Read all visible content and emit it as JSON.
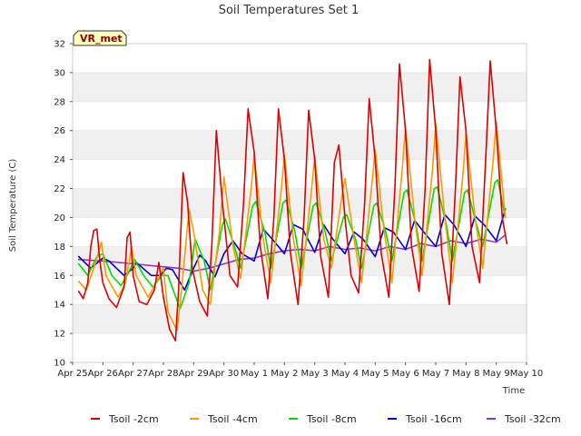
{
  "chart_data": {
    "type": "line",
    "title": "Soil Temperatures Set 1",
    "xlabel": "Time",
    "ylabel": "Soil Temperature (C)",
    "site_label": "VR_met",
    "xlim": [
      0,
      15
    ],
    "ylim": [
      10,
      32
    ],
    "yticks": [
      10,
      12,
      14,
      16,
      18,
      20,
      22,
      24,
      26,
      28,
      30,
      32
    ],
    "xtick_positions": [
      0,
      1,
      2,
      3,
      4,
      5,
      6,
      7,
      8,
      9,
      10,
      11,
      12,
      13,
      14,
      15
    ],
    "xtick_labels": [
      "Apr 25",
      "Apr 26",
      "Apr 27",
      "Apr 28",
      "Apr 29",
      "Apr 30",
      "May 1",
      "May 2",
      "May 3",
      "May 4",
      "May 5",
      "May 6",
      "May 7",
      "May 8",
      "May 9",
      "May 10"
    ],
    "grid": "horizontal bands",
    "legend_position": "bottom",
    "series": [
      {
        "name": "Tsoil -2cm",
        "color": "#dd0000",
        "x": [
          0.2,
          0.35,
          0.5,
          0.6,
          0.7,
          0.8,
          0.9,
          1.0,
          1.2,
          1.45,
          1.7,
          1.8,
          1.9,
          2.0,
          2.2,
          2.45,
          2.7,
          2.85,
          3.0,
          3.2,
          3.4,
          3.5,
          3.65,
          3.8,
          3.95,
          4.2,
          4.45,
          4.6,
          4.75,
          4.95,
          5.2,
          5.45,
          5.65,
          5.8,
          6.0,
          6.2,
          6.45,
          6.65,
          6.8,
          7.0,
          7.2,
          7.45,
          7.65,
          7.8,
          8.0,
          8.2,
          8.45,
          8.65,
          8.8,
          9.0,
          9.2,
          9.45,
          9.65,
          9.8,
          10.0,
          10.2,
          10.45,
          10.65,
          10.8,
          11.0,
          11.2,
          11.45,
          11.65,
          11.8,
          12.0,
          12.2,
          12.45,
          12.65,
          12.8,
          13.0,
          13.2,
          13.45,
          13.65,
          13.8,
          14.0,
          14.2,
          14.35
        ],
        "y": [
          14.9,
          14.4,
          15.5,
          18.0,
          19.1,
          19.2,
          17.0,
          15.5,
          14.4,
          13.8,
          15.2,
          18.6,
          19.0,
          16.0,
          14.2,
          14.0,
          15.0,
          16.9,
          14.5,
          12.3,
          11.5,
          15.0,
          23.1,
          21.0,
          16.5,
          14.2,
          13.2,
          18.0,
          26.0,
          21.0,
          16.0,
          15.2,
          21.0,
          27.5,
          24.5,
          18.0,
          14.4,
          20.0,
          27.5,
          24.0,
          17.5,
          14.0,
          20.0,
          27.4,
          24.0,
          17.3,
          14.5,
          23.8,
          25.0,
          20.0,
          16.0,
          14.8,
          21.0,
          28.2,
          24.0,
          17.5,
          14.5,
          22.0,
          30.6,
          26.0,
          18.0,
          14.9,
          22.0,
          30.9,
          26.0,
          17.5,
          14.0,
          22.0,
          29.7,
          26.0,
          18.0,
          15.5,
          24.0,
          30.8,
          26.0,
          20.0,
          18.2
        ]
      },
      {
        "name": "Tsoil -4cm",
        "color": "#ff9900",
        "x": [
          0.2,
          0.45,
          0.7,
          0.95,
          1.1,
          1.5,
          1.75,
          1.95,
          2.1,
          2.5,
          2.75,
          3.0,
          3.15,
          3.45,
          3.6,
          3.85,
          4.0,
          4.3,
          4.55,
          4.85,
          5.0,
          5.3,
          5.55,
          5.9,
          6.0,
          6.3,
          6.55,
          6.9,
          7.0,
          7.3,
          7.55,
          7.9,
          8.0,
          8.3,
          8.55,
          8.9,
          9.0,
          9.3,
          9.55,
          9.9,
          10.0,
          10.3,
          10.55,
          10.9,
          11.0,
          11.3,
          11.55,
          11.9,
          12.0,
          12.3,
          12.55,
          12.9,
          13.0,
          13.3,
          13.55,
          13.9,
          14.0,
          14.3
        ],
        "y": [
          15.6,
          15.0,
          16.5,
          18.3,
          16.0,
          14.5,
          15.5,
          18.0,
          16.0,
          14.5,
          15.5,
          16.5,
          13.5,
          12.2,
          15.0,
          20.6,
          19.0,
          15.0,
          14.0,
          19.0,
          22.8,
          18.0,
          15.8,
          22.0,
          24.3,
          18.5,
          15.5,
          22.0,
          24.3,
          18.5,
          15.3,
          22.0,
          24.2,
          18.5,
          16.5,
          21.5,
          22.7,
          18.5,
          15.5,
          22.5,
          24.7,
          19.0,
          15.5,
          23.5,
          26.2,
          20.0,
          16.0,
          23.5,
          26.5,
          20.0,
          15.5,
          23.0,
          25.8,
          20.0,
          16.5,
          24.0,
          26.6,
          20.0
        ]
      },
      {
        "name": "Tsoil -8cm",
        "color": "#00dd00",
        "x": [
          0.2,
          0.5,
          0.8,
          1.0,
          1.3,
          1.6,
          1.85,
          2.05,
          2.35,
          2.65,
          2.95,
          3.15,
          3.55,
          3.85,
          4.05,
          4.35,
          4.55,
          4.95,
          5.05,
          5.35,
          5.55,
          5.95,
          6.05,
          6.35,
          6.55,
          6.95,
          7.05,
          7.35,
          7.55,
          7.95,
          8.05,
          8.35,
          8.55,
          8.95,
          9.05,
          9.35,
          9.55,
          9.95,
          10.05,
          10.35,
          10.55,
          10.95,
          11.05,
          11.35,
          11.55,
          11.95,
          12.05,
          12.35,
          12.55,
          12.95,
          13.05,
          13.35,
          13.55,
          13.95,
          14.05,
          14.3
        ],
        "y": [
          16.8,
          16.0,
          17.3,
          17.5,
          16.0,
          15.3,
          16.2,
          17.1,
          16.0,
          15.2,
          16.0,
          16.0,
          13.7,
          15.5,
          18.5,
          17.0,
          15.0,
          19.5,
          19.9,
          18.0,
          16.5,
          20.8,
          21.1,
          19.0,
          16.5,
          21.0,
          21.2,
          19.0,
          16.5,
          20.8,
          21.0,
          19.0,
          17.0,
          20.0,
          20.2,
          18.5,
          16.5,
          20.8,
          21.0,
          19.0,
          17.0,
          21.7,
          21.9,
          19.5,
          17.0,
          22.0,
          22.1,
          19.5,
          17.0,
          21.7,
          21.9,
          19.5,
          18.0,
          22.4,
          22.6,
          20.0
        ]
      },
      {
        "name": "Tsoil -16cm",
        "color": "#0000cc",
        "x": [
          0.2,
          0.6,
          1.0,
          1.2,
          1.7,
          2.0,
          2.1,
          2.6,
          2.9,
          3.1,
          3.3,
          3.7,
          4.0,
          4.2,
          4.4,
          4.7,
          5.0,
          5.3,
          5.6,
          6.0,
          6.3,
          6.6,
          7.0,
          7.3,
          7.6,
          8.0,
          8.3,
          8.6,
          9.0,
          9.3,
          9.6,
          10.0,
          10.3,
          10.6,
          11.0,
          11.3,
          11.6,
          12.0,
          12.3,
          12.6,
          13.0,
          13.3,
          13.6,
          14.0,
          14.3
        ],
        "y": [
          17.3,
          16.5,
          17.2,
          17.0,
          16.0,
          16.5,
          16.9,
          16.0,
          16.0,
          16.5,
          16.4,
          15.0,
          16.5,
          17.4,
          17.0,
          15.9,
          17.5,
          18.4,
          17.5,
          17.0,
          19.2,
          18.5,
          17.5,
          19.5,
          19.2,
          17.6,
          19.5,
          18.5,
          17.5,
          19.0,
          18.5,
          17.3,
          19.3,
          19.0,
          17.8,
          19.8,
          19.0,
          18.0,
          20.2,
          19.5,
          18.0,
          20.1,
          19.5,
          18.4,
          20.6
        ]
      },
      {
        "name": "Tsoil -32cm",
        "color": "#9933cc",
        "x": [
          0.2,
          1.0,
          2.0,
          3.0,
          3.5,
          4.0,
          4.5,
          5.0,
          5.5,
          6.0,
          6.5,
          7.0,
          7.5,
          8.0,
          8.5,
          9.0,
          9.5,
          10.0,
          10.5,
          11.0,
          11.5,
          12.0,
          12.5,
          13.0,
          13.5,
          14.0,
          14.3
        ],
        "y": [
          17.1,
          17.0,
          16.8,
          16.6,
          16.5,
          16.3,
          16.5,
          16.8,
          17.1,
          17.2,
          17.5,
          17.7,
          17.8,
          17.7,
          18.0,
          17.8,
          17.9,
          17.7,
          18.0,
          17.8,
          18.2,
          18.0,
          18.4,
          18.2,
          18.5,
          18.3,
          18.8
        ]
      }
    ]
  }
}
